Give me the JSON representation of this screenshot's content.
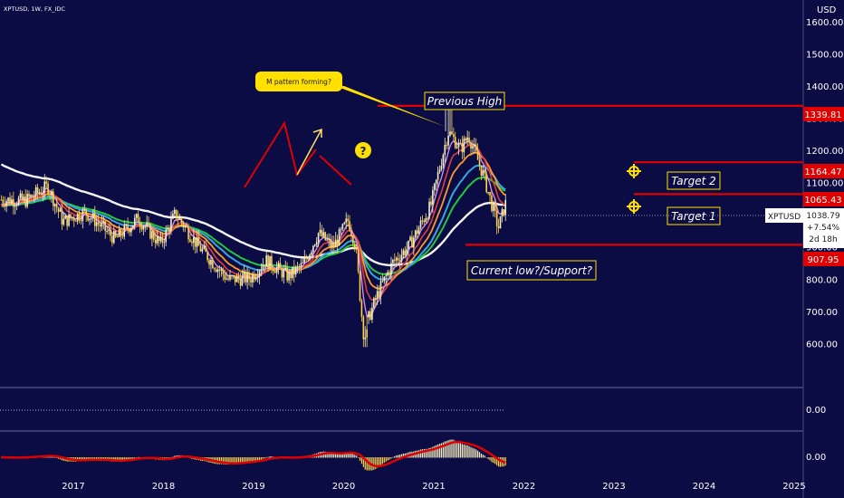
{
  "header": {
    "symbol_info": "XPTUSD, 1W, FX_IDC",
    "currency": "USD"
  },
  "colors": {
    "background": "#0c0c44",
    "annotation_red": "#e00000",
    "annotation_yellow": "#ffe000",
    "candle_up": "#f2f0c8",
    "candle_down": "#ffd24a",
    "ema_white": "#f4f4f4",
    "ema_green": "#21c93a",
    "ema_blue": "#39a5e0",
    "ema_orange": "#ff9a2a",
    "ema_red": "#e33d3d",
    "ema_pink": "#d78ae0"
  },
  "annotations": {
    "callout": "M pattern forming?",
    "question_mark": "?",
    "previous_high": "Previous High",
    "target2": "Target 2",
    "target1": "Target 1",
    "support": "Current low?/Support?"
  },
  "price_tags": {
    "level_high": "1339.81",
    "level_t2": "1164.47",
    "level_t1": "1065.43",
    "level_low": "907.95",
    "current_symbol": "XPTUSD",
    "current_price": "1038.79",
    "current_change": "+7.54%",
    "current_timer": "2d 18h"
  },
  "indicator": {
    "zero_upper": "0.00",
    "zero_lower": "0.00"
  },
  "chart_data": {
    "type": "candlestick",
    "title": "XPTUSD, 1W, FX_IDC",
    "ylabel": "USD",
    "ylim": [
      555,
      1640
    ],
    "y_ticks": [
      "1600.00",
      "1500.00",
      "1400.00",
      "1300.00",
      "1200.00",
      "1100.00",
      "1000.00",
      "900.00",
      "800.00",
      "700.00",
      "600.00"
    ],
    "x_ticks": [
      "2017",
      "2018",
      "2019",
      "2020",
      "2021",
      "2022",
      "2023",
      "2024",
      "2025"
    ],
    "horizontal_levels": [
      1339.81,
      1164.47,
      1065.43,
      907.95
    ],
    "last_price": 1038.79,
    "price_path": [
      [
        "2016-01",
        1050
      ],
      [
        "2016-06",
        1045
      ],
      [
        "2016-09",
        1090
      ],
      [
        "2016-11",
        980
      ],
      [
        "2017-02",
        1010
      ],
      [
        "2017-06",
        925
      ],
      [
        "2017-09",
        990
      ],
      [
        "2017-12",
        910
      ],
      [
        "2018-02",
        1005
      ],
      [
        "2018-05",
        905
      ],
      [
        "2018-09",
        800
      ],
      [
        "2018-12",
        805
      ],
      [
        "2019-02",
        860
      ],
      [
        "2019-05",
        810
      ],
      [
        "2019-07",
        845
      ],
      [
        "2019-09",
        945
      ],
      [
        "2019-11",
        900
      ],
      [
        "2020-01",
        985
      ],
      [
        "2020-02",
        905
      ],
      [
        "2020-03",
        635
      ],
      [
        "2020-05",
        760
      ],
      [
        "2020-07",
        855
      ],
      [
        "2020-09",
        900
      ],
      [
        "2020-12",
        1030
      ],
      [
        "2021-02",
        1230
      ],
      [
        "2021-02",
        1260
      ],
      [
        "2021-04",
        1205
      ],
      [
        "2021-05",
        1250
      ],
      [
        "2021-07",
        1125
      ],
      [
        "2021-09",
        960
      ],
      [
        "2021-10",
        1038.79
      ]
    ]
  }
}
